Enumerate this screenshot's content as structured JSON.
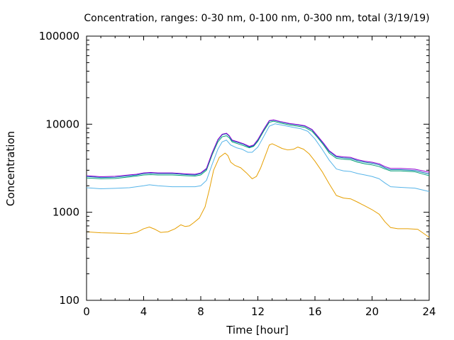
{
  "chart_data": {
    "type": "line",
    "title": "Concentration, ranges: 0-30 nm, 0-100 nm, 0-300 nm, total (3/19/19)",
    "xlabel": "Time [hour]",
    "ylabel": "Concentration",
    "xlim": [
      0,
      24
    ],
    "ylim": [
      100,
      100000
    ],
    "yscale": "log",
    "grid": false,
    "legend": "none",
    "x_ticks": [
      0,
      4,
      8,
      12,
      16,
      20,
      24
    ],
    "x_tick_labels": [
      "0",
      "4",
      "8",
      "12",
      "16",
      "20",
      "24"
    ],
    "y_ticks": [
      100,
      1000,
      10000,
      100000
    ],
    "y_tick_labels": [
      "100",
      "1000",
      "10000",
      "100000"
    ],
    "series": [
      {
        "color": "#e69f00",
        "points": [
          [
            0,
            600
          ],
          [
            1,
            585
          ],
          [
            2,
            580
          ],
          [
            3,
            570
          ],
          [
            3.5,
            590
          ],
          [
            4,
            650
          ],
          [
            4.4,
            680
          ],
          [
            4.8,
            640
          ],
          [
            5.2,
            590
          ],
          [
            5.7,
            600
          ],
          [
            6.2,
            650
          ],
          [
            6.6,
            720
          ],
          [
            6.9,
            690
          ],
          [
            7.2,
            700
          ],
          [
            7.5,
            760
          ],
          [
            7.9,
            860
          ],
          [
            8.3,
            1150
          ],
          [
            8.6,
            1800
          ],
          [
            8.9,
            3000
          ],
          [
            9.3,
            4200
          ],
          [
            9.7,
            4700
          ],
          [
            9.9,
            4400
          ],
          [
            10.1,
            3700
          ],
          [
            10.4,
            3400
          ],
          [
            10.8,
            3200
          ],
          [
            11.2,
            2800
          ],
          [
            11.6,
            2400
          ],
          [
            11.9,
            2550
          ],
          [
            12.2,
            3200
          ],
          [
            12.5,
            4300
          ],
          [
            12.8,
            5800
          ],
          [
            13.0,
            6000
          ],
          [
            13.3,
            5700
          ],
          [
            13.7,
            5300
          ],
          [
            14.1,
            5100
          ],
          [
            14.5,
            5200
          ],
          [
            14.8,
            5500
          ],
          [
            15.2,
            5200
          ],
          [
            15.6,
            4600
          ],
          [
            16.0,
            3800
          ],
          [
            16.5,
            2900
          ],
          [
            17.0,
            2100
          ],
          [
            17.5,
            1550
          ],
          [
            18.0,
            1450
          ],
          [
            18.5,
            1420
          ],
          [
            19.0,
            1300
          ],
          [
            19.5,
            1180
          ],
          [
            20.0,
            1070
          ],
          [
            20.5,
            950
          ],
          [
            20.9,
            780
          ],
          [
            21.3,
            670
          ],
          [
            21.8,
            650
          ],
          [
            22.5,
            650
          ],
          [
            23.2,
            640
          ],
          [
            24,
            520
          ]
        ]
      },
      {
        "color": "#56b4e9",
        "points": [
          [
            0,
            1900
          ],
          [
            1,
            1850
          ],
          [
            2,
            1870
          ],
          [
            3,
            1900
          ],
          [
            3.5,
            1950
          ],
          [
            4,
            2000
          ],
          [
            4.4,
            2050
          ],
          [
            5,
            2000
          ],
          [
            6,
            1950
          ],
          [
            7,
            1950
          ],
          [
            7.6,
            1950
          ],
          [
            8.0,
            2000
          ],
          [
            8.4,
            2300
          ],
          [
            8.8,
            3500
          ],
          [
            9.2,
            5200
          ],
          [
            9.5,
            6300
          ],
          [
            9.8,
            6600
          ],
          [
            10.1,
            5800
          ],
          [
            10.5,
            5400
          ],
          [
            10.9,
            5200
          ],
          [
            11.3,
            4800
          ],
          [
            11.6,
            4800
          ],
          [
            12.0,
            5500
          ],
          [
            12.4,
            7200
          ],
          [
            12.8,
            9500
          ],
          [
            13.2,
            10100
          ],
          [
            13.8,
            9700
          ],
          [
            14.5,
            9200
          ],
          [
            15.0,
            8900
          ],
          [
            15.5,
            8300
          ],
          [
            16.0,
            6800
          ],
          [
            16.5,
            5200
          ],
          [
            17.0,
            3900
          ],
          [
            17.5,
            3100
          ],
          [
            18.0,
            2950
          ],
          [
            18.5,
            2900
          ],
          [
            19.0,
            2750
          ],
          [
            19.5,
            2650
          ],
          [
            20.0,
            2550
          ],
          [
            20.5,
            2400
          ],
          [
            20.9,
            2150
          ],
          [
            21.3,
            1950
          ],
          [
            22.0,
            1920
          ],
          [
            23.0,
            1880
          ],
          [
            24,
            1720
          ]
        ]
      },
      {
        "color": "#009e73",
        "points": [
          [
            0,
            2450
          ],
          [
            1,
            2400
          ],
          [
            2,
            2420
          ],
          [
            3,
            2520
          ],
          [
            3.5,
            2580
          ],
          [
            4,
            2650
          ],
          [
            4.5,
            2680
          ],
          [
            5,
            2650
          ],
          [
            6,
            2650
          ],
          [
            7,
            2600
          ],
          [
            7.6,
            2580
          ],
          [
            8.0,
            2650
          ],
          [
            8.4,
            3000
          ],
          [
            8.8,
            4500
          ],
          [
            9.2,
            6300
          ],
          [
            9.5,
            7200
          ],
          [
            9.8,
            7400
          ],
          [
            10.0,
            7000
          ],
          [
            10.2,
            6300
          ],
          [
            10.6,
            6000
          ],
          [
            11.0,
            5700
          ],
          [
            11.4,
            5400
          ],
          [
            11.7,
            5600
          ],
          [
            12.0,
            6400
          ],
          [
            12.4,
            8300
          ],
          [
            12.8,
            10500
          ],
          [
            13.1,
            10800
          ],
          [
            13.6,
            10300
          ],
          [
            14.2,
            9800
          ],
          [
            14.8,
            9500
          ],
          [
            15.3,
            9200
          ],
          [
            15.8,
            8300
          ],
          [
            16.2,
            7000
          ],
          [
            16.6,
            5800
          ],
          [
            17.0,
            4700
          ],
          [
            17.5,
            4100
          ],
          [
            18.0,
            4000
          ],
          [
            18.5,
            3950
          ],
          [
            19.0,
            3700
          ],
          [
            19.5,
            3550
          ],
          [
            20.0,
            3450
          ],
          [
            20.5,
            3300
          ],
          [
            20.9,
            3100
          ],
          [
            21.3,
            2950
          ],
          [
            22.0,
            2950
          ],
          [
            23.0,
            2880
          ],
          [
            24,
            2600
          ]
        ]
      },
      {
        "color": "#0072b2",
        "points": [
          [
            0,
            2550
          ],
          [
            1,
            2480
          ],
          [
            2,
            2500
          ],
          [
            3,
            2600
          ],
          [
            3.5,
            2650
          ],
          [
            4,
            2750
          ],
          [
            4.5,
            2780
          ],
          [
            5,
            2750
          ],
          [
            6,
            2750
          ],
          [
            7,
            2680
          ],
          [
            7.6,
            2650
          ],
          [
            8.0,
            2750
          ],
          [
            8.4,
            3100
          ],
          [
            8.8,
            4700
          ],
          [
            9.2,
            6600
          ],
          [
            9.5,
            7600
          ],
          [
            9.8,
            7800
          ],
          [
            10.0,
            7300
          ],
          [
            10.2,
            6500
          ],
          [
            10.6,
            6200
          ],
          [
            11.0,
            5900
          ],
          [
            11.4,
            5500
          ],
          [
            11.7,
            5700
          ],
          [
            12.0,
            6600
          ],
          [
            12.4,
            8600
          ],
          [
            12.8,
            10900
          ],
          [
            13.1,
            11100
          ],
          [
            13.6,
            10600
          ],
          [
            14.2,
            10100
          ],
          [
            14.8,
            9800
          ],
          [
            15.3,
            9500
          ],
          [
            15.8,
            8600
          ],
          [
            16.2,
            7200
          ],
          [
            16.6,
            6000
          ],
          [
            17.0,
            4900
          ],
          [
            17.5,
            4250
          ],
          [
            18.0,
            4150
          ],
          [
            18.5,
            4100
          ],
          [
            19.0,
            3850
          ],
          [
            19.5,
            3700
          ],
          [
            20.0,
            3600
          ],
          [
            20.5,
            3450
          ],
          [
            20.9,
            3200
          ],
          [
            21.3,
            3050
          ],
          [
            22.0,
            3050
          ],
          [
            23.0,
            2980
          ],
          [
            24,
            2720
          ]
        ]
      },
      {
        "color": "#9400d3",
        "points": [
          [
            0,
            2600
          ],
          [
            1,
            2530
          ],
          [
            2,
            2560
          ],
          [
            3,
            2660
          ],
          [
            3.5,
            2700
          ],
          [
            4,
            2800
          ],
          [
            4.5,
            2830
          ],
          [
            5,
            2800
          ],
          [
            6,
            2800
          ],
          [
            7,
            2730
          ],
          [
            7.6,
            2700
          ],
          [
            8.0,
            2800
          ],
          [
            8.4,
            3150
          ],
          [
            8.8,
            4750
          ],
          [
            9.2,
            6700
          ],
          [
            9.5,
            7700
          ],
          [
            9.8,
            7900
          ],
          [
            10.0,
            7400
          ],
          [
            10.2,
            6600
          ],
          [
            10.6,
            6300
          ],
          [
            11.0,
            6000
          ],
          [
            11.4,
            5600
          ],
          [
            11.7,
            5800
          ],
          [
            12.0,
            6700
          ],
          [
            12.4,
            8700
          ],
          [
            12.8,
            11000
          ],
          [
            13.1,
            11200
          ],
          [
            13.6,
            10700
          ],
          [
            14.2,
            10200
          ],
          [
            14.8,
            9900
          ],
          [
            15.3,
            9600
          ],
          [
            15.8,
            8700
          ],
          [
            16.2,
            7300
          ],
          [
            16.6,
            6100
          ],
          [
            17.0,
            5000
          ],
          [
            17.5,
            4350
          ],
          [
            18.0,
            4250
          ],
          [
            18.5,
            4200
          ],
          [
            19.0,
            3950
          ],
          [
            19.5,
            3800
          ],
          [
            20.0,
            3700
          ],
          [
            20.5,
            3550
          ],
          [
            20.9,
            3300
          ],
          [
            21.3,
            3150
          ],
          [
            22.0,
            3150
          ],
          [
            23.0,
            3080
          ],
          [
            24,
            2850
          ]
        ]
      }
    ]
  }
}
